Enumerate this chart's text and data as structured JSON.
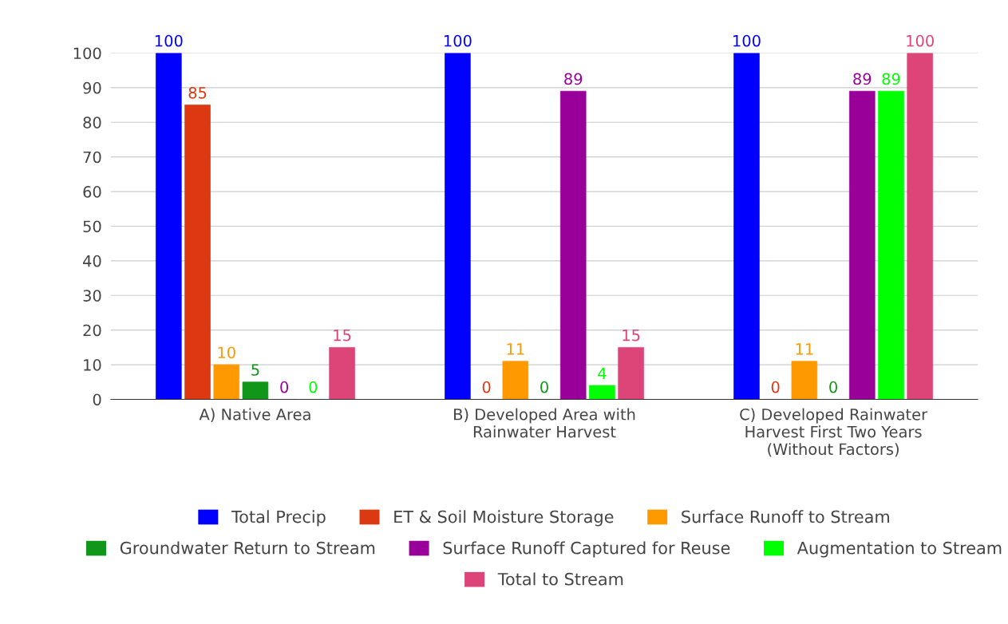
{
  "chart_data": {
    "type": "bar",
    "categories": [
      "A) Native Area",
      "B) Developed Area with\nRainwater Harvest",
      "C) Developed Rainwater\nHarvest First Two Years\n(Without Factors)"
    ],
    "series": [
      {
        "name": "Total Precip",
        "color": "#0000ff",
        "values": [
          100,
          100,
          100
        ]
      },
      {
        "name": "ET & Soil Moisture Storage",
        "color": "#dc3912",
        "values": [
          85,
          0,
          0
        ]
      },
      {
        "name": "Surface Runoff to Stream",
        "color": "#ff9900",
        "values": [
          10,
          11,
          11
        ]
      },
      {
        "name": "Groundwater Return to Stream",
        "color": "#109618",
        "values": [
          5,
          0,
          0
        ]
      },
      {
        "name": "Surface Runoff Captured for Reuse",
        "color": "#990099",
        "values": [
          0,
          89,
          89
        ]
      },
      {
        "name": "Augmentation to Stream",
        "color": "#00ff00",
        "values": [
          0,
          4,
          89
        ]
      },
      {
        "name": "Total to Stream",
        "color": "#dd4477",
        "values": [
          15,
          15,
          100
        ]
      }
    ],
    "ylim": [
      0,
      100
    ],
    "yticks": [
      0,
      10,
      20,
      30,
      40,
      50,
      60,
      70,
      80,
      90,
      100
    ],
    "grid": "y",
    "legend": "bottom",
    "data_labels": true
  }
}
